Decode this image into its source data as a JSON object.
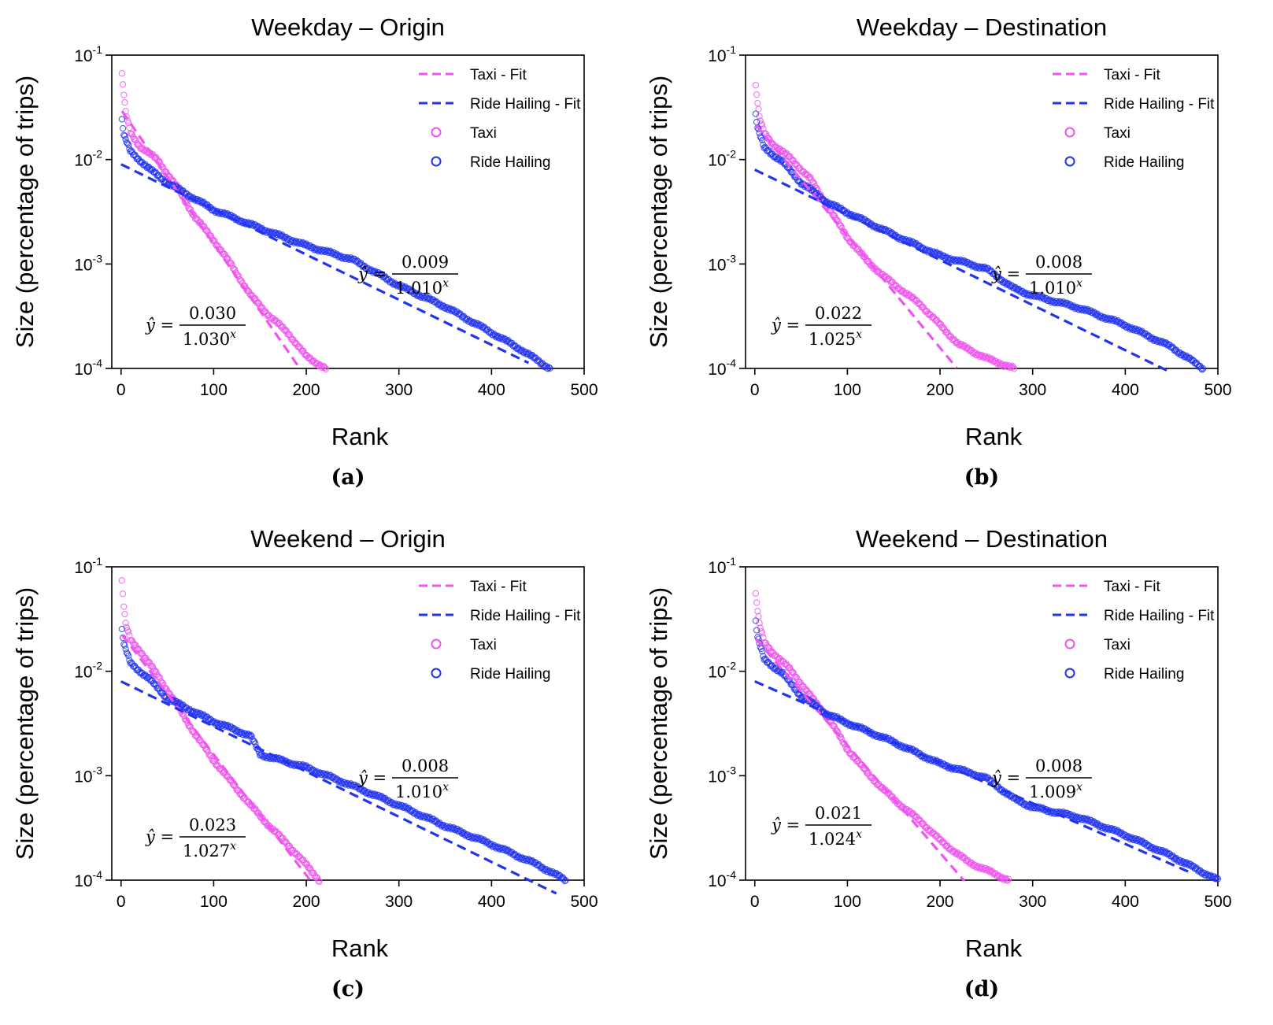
{
  "colors": {
    "taxi": "#ee55ee",
    "ride_hailing": "#2233ee",
    "axis": "#000000"
  },
  "legend": {
    "taxi_fit": "Taxi - Fit",
    "ride_fit": "Ride Hailing - Fit",
    "taxi": "Taxi",
    "ride": "Ride Hailing"
  },
  "chart_data": [
    {
      "type": "scatter",
      "panel_label": "(a)",
      "title": "Weekday – Origin",
      "xlabel": "Rank",
      "ylabel": "Size (percentage of trips)",
      "xlim": [
        -10,
        500
      ],
      "ylim": [
        0.0001,
        0.1
      ],
      "yscale": "log",
      "xticks": [
        0,
        100,
        200,
        300,
        400,
        500
      ],
      "yticks": [
        {
          "base": "10",
          "exp": "-1"
        },
        {
          "base": "10",
          "exp": "-2"
        },
        {
          "base": "10",
          "exp": "-3"
        },
        {
          "base": "10",
          "exp": "-4"
        }
      ],
      "legend_position": "top-right",
      "series": [
        {
          "name": "Taxi",
          "n": 221,
          "anchors": [
            [
              1,
              0.065
            ],
            [
              3,
              0.042
            ],
            [
              5,
              0.028
            ],
            [
              10,
              0.018
            ],
            [
              20,
              0.0135
            ],
            [
              40,
              0.0098
            ],
            [
              60,
              0.0055
            ],
            [
              80,
              0.0028
            ],
            [
              100,
              0.0017
            ],
            [
              120,
              0.00095
            ],
            [
              140,
              0.0005
            ],
            [
              160,
              0.00032
            ],
            [
              180,
              0.00022
            ],
            [
              200,
              0.00013
            ],
            [
              221,
              0.0001
            ]
          ]
        },
        {
          "name": "Ride Hailing",
          "n": 463,
          "anchors": [
            [
              1,
              0.024
            ],
            [
              3,
              0.017
            ],
            [
              10,
              0.012
            ],
            [
              30,
              0.0082
            ],
            [
              50,
              0.006
            ],
            [
              100,
              0.0033
            ],
            [
              150,
              0.0022
            ],
            [
              200,
              0.0015
            ],
            [
              250,
              0.0011
            ],
            [
              300,
              0.00062
            ],
            [
              350,
              0.00039
            ],
            [
              400,
              0.00022
            ],
            [
              430,
              0.000155
            ],
            [
              463,
              0.0001
            ]
          ]
        }
      ],
      "fits": [
        {
          "name": "Taxi - Fit",
          "a": 0.03,
          "b": 1.03,
          "x_range": [
            1,
            192
          ]
        },
        {
          "name": "Ride Hailing - Fit",
          "a": 0.009,
          "b": 1.01,
          "x_range": [
            0,
            440
          ]
        }
      ],
      "equations": [
        {
          "label": "ŷ =",
          "num": "0.030",
          "den_base": "1.030",
          "den_exp": "x"
        },
        {
          "label": "ŷ =",
          "num": "0.009",
          "den_base": "1.010",
          "den_exp": "x"
        }
      ]
    },
    {
      "type": "scatter",
      "panel_label": "(b)",
      "title": "Weekday – Destination",
      "xlabel": "Rank",
      "ylabel": "Size (percentage of trips)",
      "xlim": [
        -10,
        500
      ],
      "ylim": [
        0.0001,
        0.1
      ],
      "yscale": "log",
      "xticks": [
        0,
        100,
        200,
        300,
        400,
        500
      ],
      "yticks": [
        {
          "base": "10",
          "exp": "-1"
        },
        {
          "base": "10",
          "exp": "-2"
        },
        {
          "base": "10",
          "exp": "-3"
        },
        {
          "base": "10",
          "exp": "-4"
        }
      ],
      "legend_position": "top-right",
      "series": [
        {
          "name": "Taxi",
          "n": 280,
          "anchors": [
            [
              1,
              0.05
            ],
            [
              3,
              0.035
            ],
            [
              5,
              0.025
            ],
            [
              10,
              0.018
            ],
            [
              20,
              0.014
            ],
            [
              40,
              0.01
            ],
            [
              60,
              0.0065
            ],
            [
              80,
              0.0034
            ],
            [
              100,
              0.0018
            ],
            [
              120,
              0.0011
            ],
            [
              140,
              0.00075
            ],
            [
              160,
              0.00055
            ],
            [
              180,
              0.0004
            ],
            [
              200,
              0.00026
            ],
            [
              220,
              0.00017
            ],
            [
              250,
              0.000125
            ],
            [
              280,
              0.0001
            ]
          ]
        },
        {
          "name": "Ride Hailing",
          "n": 484,
          "anchors": [
            [
              1,
              0.027
            ],
            [
              3,
              0.02
            ],
            [
              10,
              0.013
            ],
            [
              30,
              0.0095
            ],
            [
              50,
              0.006
            ],
            [
              80,
              0.0038
            ],
            [
              100,
              0.0031
            ],
            [
              150,
              0.0019
            ],
            [
              200,
              0.0012
            ],
            [
              250,
              0.0009
            ],
            [
              280,
              0.00058
            ],
            [
              300,
              0.0005
            ],
            [
              350,
              0.00038
            ],
            [
              400,
              0.00026
            ],
            [
              450,
              0.00016
            ],
            [
              484,
              0.0001
            ]
          ]
        }
      ],
      "fits": [
        {
          "name": "Taxi - Fit",
          "a": 0.022,
          "b": 1.025,
          "x_range": [
            1,
            218
          ]
        },
        {
          "name": "Ride Hailing - Fit",
          "a": 0.008,
          "b": 1.01,
          "x_range": [
            0,
            450
          ]
        }
      ],
      "equations": [
        {
          "label": "ŷ =",
          "num": "0.022",
          "den_base": "1.025",
          "den_exp": "x"
        },
        {
          "label": "ŷ =",
          "num": "0.008",
          "den_base": "1.010",
          "den_exp": "x"
        }
      ]
    },
    {
      "type": "scatter",
      "panel_label": "(c)",
      "title": "Weekend – Origin",
      "xlabel": "Rank",
      "ylabel": "Size (percentage of trips)",
      "xlim": [
        -10,
        500
      ],
      "ylim": [
        0.0001,
        0.1
      ],
      "yscale": "log",
      "xticks": [
        0,
        100,
        200,
        300,
        400,
        500
      ],
      "yticks": [
        {
          "base": "10",
          "exp": "-1"
        },
        {
          "base": "10",
          "exp": "-2"
        },
        {
          "base": "10",
          "exp": "-3"
        },
        {
          "base": "10",
          "exp": "-4"
        }
      ],
      "legend_position": "top-right",
      "series": [
        {
          "name": "Taxi",
          "n": 214,
          "anchors": [
            [
              1,
              0.072
            ],
            [
              3,
              0.042
            ],
            [
              5,
              0.028
            ],
            [
              10,
              0.02
            ],
            [
              20,
              0.016
            ],
            [
              40,
              0.009
            ],
            [
              60,
              0.0048
            ],
            [
              80,
              0.0025
            ],
            [
              100,
              0.0014
            ],
            [
              120,
              0.00085
            ],
            [
              140,
              0.00052
            ],
            [
              160,
              0.00033
            ],
            [
              180,
              0.00022
            ],
            [
              200,
              0.00014
            ],
            [
              214,
              0.0001
            ]
          ]
        },
        {
          "name": "Ride Hailing",
          "n": 480,
          "anchors": [
            [
              1,
              0.025
            ],
            [
              3,
              0.018
            ],
            [
              10,
              0.012
            ],
            [
              30,
              0.0085
            ],
            [
              50,
              0.0055
            ],
            [
              100,
              0.0033
            ],
            [
              140,
              0.0024
            ],
            [
              150,
              0.0016
            ],
            [
              200,
              0.0012
            ],
            [
              250,
              0.0008
            ],
            [
              300,
              0.00052
            ],
            [
              350,
              0.00033
            ],
            [
              400,
              0.00022
            ],
            [
              450,
              0.00014
            ],
            [
              480,
              0.0001
            ]
          ]
        }
      ],
      "fits": [
        {
          "name": "Taxi - Fit",
          "a": 0.023,
          "b": 1.027,
          "x_range": [
            1,
            205
          ]
        },
        {
          "name": "Ride Hailing - Fit",
          "a": 0.008,
          "b": 1.01,
          "x_range": [
            0,
            470
          ]
        }
      ],
      "equations": [
        {
          "label": "ŷ =",
          "num": "0.023",
          "den_base": "1.027",
          "den_exp": "x"
        },
        {
          "label": "ŷ =",
          "num": "0.008",
          "den_base": "1.010",
          "den_exp": "x"
        }
      ]
    },
    {
      "type": "scatter",
      "panel_label": "(d)",
      "title": "Weekend – Destination",
      "xlabel": "Rank",
      "ylabel": "Size (percentage of trips)",
      "xlim": [
        -10,
        500
      ],
      "ylim": [
        0.0001,
        0.1
      ],
      "yscale": "log",
      "xticks": [
        0,
        100,
        200,
        300,
        400,
        500
      ],
      "yticks": [
        {
          "base": "10",
          "exp": "-1"
        },
        {
          "base": "10",
          "exp": "-2"
        },
        {
          "base": "10",
          "exp": "-3"
        },
        {
          "base": "10",
          "exp": "-4"
        }
      ],
      "legend_position": "top-right",
      "series": [
        {
          "name": "Taxi",
          "n": 274,
          "anchors": [
            [
              1,
              0.054
            ],
            [
              3,
              0.038
            ],
            [
              5,
              0.028
            ],
            [
              10,
              0.019
            ],
            [
              20,
              0.015
            ],
            [
              40,
              0.01
            ],
            [
              60,
              0.0058
            ],
            [
              80,
              0.0035
            ],
            [
              100,
              0.0018
            ],
            [
              120,
              0.0011
            ],
            [
              140,
              0.00072
            ],
            [
              160,
              0.0005
            ],
            [
              180,
              0.00036
            ],
            [
              200,
              0.00024
            ],
            [
              230,
              0.00015
            ],
            [
              274,
              0.0001
            ]
          ]
        },
        {
          "name": "Ride Hailing",
          "n": 500,
          "anchors": [
            [
              1,
              0.03
            ],
            [
              3,
              0.021
            ],
            [
              10,
              0.013
            ],
            [
              30,
              0.0095
            ],
            [
              50,
              0.0058
            ],
            [
              80,
              0.0038
            ],
            [
              100,
              0.0032
            ],
            [
              150,
              0.0021
            ],
            [
              200,
              0.0013
            ],
            [
              250,
              0.00095
            ],
            [
              280,
              0.0006
            ],
            [
              300,
              0.0005
            ],
            [
              350,
              0.0004
            ],
            [
              400,
              0.00027
            ],
            [
              450,
              0.00017
            ],
            [
              500,
              0.0001
            ]
          ]
        }
      ],
      "fits": [
        {
          "name": "Taxi - Fit",
          "a": 0.021,
          "b": 1.024,
          "x_range": [
            1,
            226
          ]
        },
        {
          "name": "Ride Hailing - Fit",
          "a": 0.008,
          "b": 1.009,
          "x_range": [
            0,
            470
          ]
        }
      ],
      "equations": [
        {
          "label": "ŷ =",
          "num": "0.021",
          "den_base": "1.024",
          "den_exp": "x"
        },
        {
          "label": "ŷ =",
          "num": "0.008",
          "den_base": "1.009",
          "den_exp": "x"
        }
      ]
    }
  ]
}
